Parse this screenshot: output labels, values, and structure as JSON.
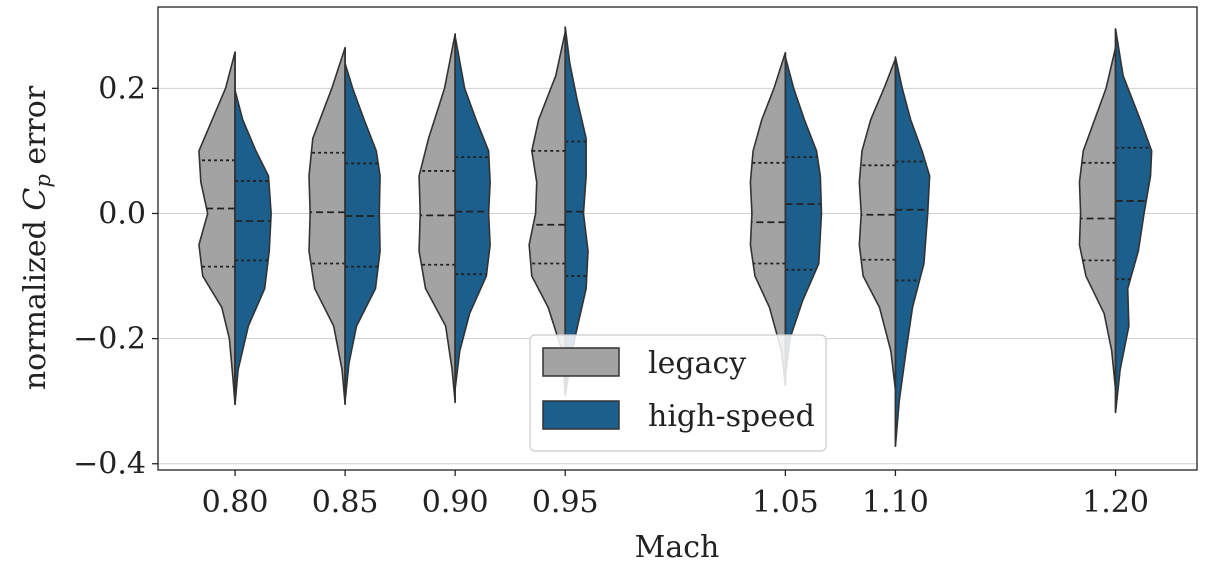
{
  "chart_data": {
    "type": "violin",
    "title": "",
    "xlabel": "Mach",
    "ylabel_prefix": "normalized ",
    "ylabel_symbol": "C",
    "ylabel_subscript": "p",
    "ylabel_suffix": " error",
    "ylim": [
      -0.41,
      0.33
    ],
    "yticks": [
      -0.4,
      -0.2,
      0.0,
      0.2
    ],
    "ytick_labels": [
      "−0.4",
      "−0.2",
      "0.0",
      "0.2"
    ],
    "categories": [
      "0.80",
      "0.85",
      "0.90",
      "0.95",
      "1.05",
      "1.10",
      "1.20"
    ],
    "x_positions": [
      0.8,
      0.85,
      0.9,
      0.95,
      1.05,
      1.1,
      1.2
    ],
    "grid": "horizontal",
    "legend": {
      "position": "bottom-center"
    },
    "inner": "quartile",
    "series": [
      {
        "name": "legacy",
        "color": "#a3a3a3",
        "side": "left",
        "violins": [
          {
            "min": -0.305,
            "max": 0.258,
            "q1": -0.085,
            "median": 0.008,
            "q3": 0.085,
            "profile": [
              [
                -0.305,
                0.0
              ],
              [
                -0.26,
                0.06
              ],
              [
                -0.2,
                0.15
              ],
              [
                -0.15,
                0.35
              ],
              [
                -0.1,
                0.85
              ],
              [
                -0.05,
                0.95
              ],
              [
                0.0,
                0.72
              ],
              [
                0.05,
                0.9
              ],
              [
                0.1,
                0.95
              ],
              [
                0.15,
                0.6
              ],
              [
                0.2,
                0.25
              ],
              [
                0.258,
                0.0
              ]
            ]
          },
          {
            "min": -0.305,
            "max": 0.265,
            "q1": -0.08,
            "median": 0.002,
            "q3": 0.097,
            "profile": [
              [
                -0.305,
                0.0
              ],
              [
                -0.25,
                0.08
              ],
              [
                -0.18,
                0.3
              ],
              [
                -0.12,
                0.8
              ],
              [
                -0.06,
                0.95
              ],
              [
                0.0,
                0.92
              ],
              [
                0.06,
                0.95
              ],
              [
                0.12,
                0.85
              ],
              [
                0.2,
                0.35
              ],
              [
                0.265,
                0.0
              ]
            ]
          },
          {
            "min": -0.302,
            "max": 0.287,
            "q1": -0.082,
            "median": -0.003,
            "q3": 0.068,
            "profile": [
              [
                -0.302,
                0.0
              ],
              [
                -0.25,
                0.08
              ],
              [
                -0.18,
                0.25
              ],
              [
                -0.12,
                0.78
              ],
              [
                -0.06,
                0.95
              ],
              [
                0.0,
                0.92
              ],
              [
                0.06,
                0.95
              ],
              [
                0.12,
                0.7
              ],
              [
                0.2,
                0.28
              ],
              [
                0.287,
                0.0
              ]
            ]
          },
          {
            "min": -0.29,
            "max": 0.29,
            "q1": -0.08,
            "median": -0.018,
            "q3": 0.1,
            "profile": [
              [
                -0.29,
                0.0
              ],
              [
                -0.22,
                0.08
              ],
              [
                -0.15,
                0.45
              ],
              [
                -0.1,
                0.88
              ],
              [
                -0.05,
                0.95
              ],
              [
                0.0,
                0.78
              ],
              [
                0.05,
                0.75
              ],
              [
                0.1,
                0.88
              ],
              [
                0.15,
                0.7
              ],
              [
                0.22,
                0.25
              ],
              [
                0.29,
                0.0
              ]
            ]
          },
          {
            "min": -0.275,
            "max": 0.257,
            "q1": -0.08,
            "median": -0.014,
            "q3": 0.081,
            "profile": [
              [
                -0.275,
                0.0
              ],
              [
                -0.22,
                0.1
              ],
              [
                -0.15,
                0.42
              ],
              [
                -0.1,
                0.8
              ],
              [
                -0.05,
                0.92
              ],
              [
                0.0,
                0.88
              ],
              [
                0.05,
                0.92
              ],
              [
                0.1,
                0.85
              ],
              [
                0.15,
                0.62
              ],
              [
                0.2,
                0.3
              ],
              [
                0.257,
                0.0
              ]
            ]
          },
          {
            "min": -0.282,
            "max": 0.247,
            "q1": -0.074,
            "median": -0.002,
            "q3": 0.077,
            "profile": [
              [
                -0.282,
                0.0
              ],
              [
                -0.22,
                0.12
              ],
              [
                -0.15,
                0.42
              ],
              [
                -0.1,
                0.85
              ],
              [
                -0.05,
                0.95
              ],
              [
                0.0,
                0.9
              ],
              [
                0.05,
                0.95
              ],
              [
                0.1,
                0.88
              ],
              [
                0.15,
                0.65
              ],
              [
                0.2,
                0.3
              ],
              [
                0.247,
                0.0
              ]
            ]
          },
          {
            "min": -0.282,
            "max": 0.265,
            "q1": -0.075,
            "median": -0.008,
            "q3": 0.081,
            "profile": [
              [
                -0.282,
                0.0
              ],
              [
                -0.22,
                0.1
              ],
              [
                -0.16,
                0.3
              ],
              [
                -0.1,
                0.78
              ],
              [
                -0.05,
                0.95
              ],
              [
                0.0,
                0.92
              ],
              [
                0.05,
                0.95
              ],
              [
                0.1,
                0.85
              ],
              [
                0.15,
                0.55
              ],
              [
                0.2,
                0.25
              ],
              [
                0.265,
                0.0
              ]
            ]
          }
        ]
      },
      {
        "name": "high-speed",
        "color": "#1c5e8c",
        "side": "right",
        "violins": [
          {
            "min": -0.305,
            "max": 0.197,
            "q1": -0.075,
            "median": -0.012,
            "q3": 0.052,
            "profile": [
              [
                -0.305,
                0.0
              ],
              [
                -0.25,
                0.08
              ],
              [
                -0.18,
                0.35
              ],
              [
                -0.12,
                0.78
              ],
              [
                -0.06,
                0.9
              ],
              [
                0.0,
                0.95
              ],
              [
                0.06,
                0.88
              ],
              [
                0.1,
                0.55
              ],
              [
                0.15,
                0.2
              ],
              [
                0.197,
                0.0
              ]
            ]
          },
          {
            "min": -0.3,
            "max": 0.24,
            "q1": -0.085,
            "median": -0.004,
            "q3": 0.08,
            "profile": [
              [
                -0.3,
                0.0
              ],
              [
                -0.24,
                0.1
              ],
              [
                -0.18,
                0.3
              ],
              [
                -0.12,
                0.8
              ],
              [
                -0.06,
                0.92
              ],
              [
                0.0,
                0.9
              ],
              [
                0.06,
                0.92
              ],
              [
                0.1,
                0.82
              ],
              [
                0.15,
                0.5
              ],
              [
                0.2,
                0.2
              ],
              [
                0.24,
                0.0
              ]
            ]
          },
          {
            "min": -0.28,
            "max": 0.283,
            "q1": -0.097,
            "median": 0.003,
            "q3": 0.09,
            "profile": [
              [
                -0.28,
                0.0
              ],
              [
                -0.22,
                0.12
              ],
              [
                -0.16,
                0.38
              ],
              [
                -0.1,
                0.82
              ],
              [
                -0.05,
                0.92
              ],
              [
                0.0,
                0.88
              ],
              [
                0.05,
                0.92
              ],
              [
                0.1,
                0.88
              ],
              [
                0.15,
                0.55
              ],
              [
                0.2,
                0.25
              ],
              [
                0.283,
                0.0
              ]
            ]
          },
          {
            "min": -0.29,
            "max": 0.298,
            "q1": -0.1,
            "median": 0.003,
            "q3": 0.115,
            "profile": [
              [
                -0.29,
                0.0
              ],
              [
                -0.2,
                0.25
              ],
              [
                -0.12,
                0.55
              ],
              [
                -0.06,
                0.6
              ],
              [
                0.0,
                0.48
              ],
              [
                0.06,
                0.55
              ],
              [
                0.12,
                0.55
              ],
              [
                0.18,
                0.32
              ],
              [
                0.24,
                0.12
              ],
              [
                0.298,
                0.0
              ]
            ]
          },
          {
            "min": -0.26,
            "max": 0.25,
            "q1": -0.09,
            "median": 0.015,
            "q3": 0.09,
            "profile": [
              [
                -0.26,
                0.0
              ],
              [
                -0.2,
                0.12
              ],
              [
                -0.14,
                0.45
              ],
              [
                -0.08,
                0.88
              ],
              [
                0.0,
                0.95
              ],
              [
                0.06,
                0.92
              ],
              [
                0.1,
                0.82
              ],
              [
                0.15,
                0.5
              ],
              [
                0.2,
                0.22
              ],
              [
                0.25,
                0.0
              ]
            ]
          },
          {
            "min": -0.372,
            "max": 0.25,
            "q1": -0.107,
            "median": 0.006,
            "q3": 0.083,
            "profile": [
              [
                -0.372,
                0.0
              ],
              [
                -0.3,
                0.1
              ],
              [
                -0.22,
                0.28
              ],
              [
                -0.15,
                0.45
              ],
              [
                -0.08,
                0.75
              ],
              [
                0.0,
                0.85
              ],
              [
                0.06,
                0.9
              ],
              [
                0.1,
                0.7
              ],
              [
                0.15,
                0.4
              ],
              [
                0.2,
                0.18
              ],
              [
                0.25,
                0.0
              ]
            ]
          },
          {
            "min": -0.318,
            "max": 0.295,
            "q1": -0.105,
            "median": 0.02,
            "q3": 0.105,
            "profile": [
              [
                -0.318,
                0.0
              ],
              [
                -0.25,
                0.12
              ],
              [
                -0.18,
                0.35
              ],
              [
                -0.12,
                0.32
              ],
              [
                -0.06,
                0.6
              ],
              [
                0.0,
                0.75
              ],
              [
                0.06,
                0.92
              ],
              [
                0.1,
                0.95
              ],
              [
                0.15,
                0.65
              ],
              [
                0.22,
                0.2
              ],
              [
                0.295,
                0.0
              ]
            ]
          }
        ]
      }
    ]
  }
}
